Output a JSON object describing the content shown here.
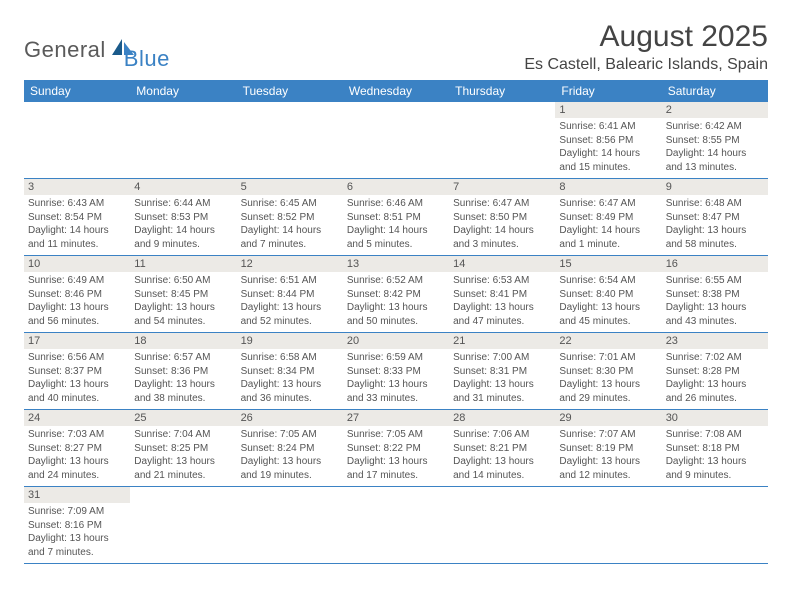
{
  "logo": {
    "general": "General",
    "blue": "Blue"
  },
  "title": "August 2025",
  "location": "Es Castell, Balearic Islands, Spain",
  "colors": {
    "header_bg": "#3b82c4",
    "header_text": "#ffffff",
    "daynum_bg": "#eceae6",
    "text": "#555555",
    "row_border": "#3b82c4"
  },
  "day_headers": [
    "Sunday",
    "Monday",
    "Tuesday",
    "Wednesday",
    "Thursday",
    "Friday",
    "Saturday"
  ],
  "weeks": [
    [
      {
        "n": "",
        "sr": "",
        "ss": "",
        "dl": ""
      },
      {
        "n": "",
        "sr": "",
        "ss": "",
        "dl": ""
      },
      {
        "n": "",
        "sr": "",
        "ss": "",
        "dl": ""
      },
      {
        "n": "",
        "sr": "",
        "ss": "",
        "dl": ""
      },
      {
        "n": "",
        "sr": "",
        "ss": "",
        "dl": ""
      },
      {
        "n": "1",
        "sr": "Sunrise: 6:41 AM",
        "ss": "Sunset: 8:56 PM",
        "dl": "Daylight: 14 hours and 15 minutes."
      },
      {
        "n": "2",
        "sr": "Sunrise: 6:42 AM",
        "ss": "Sunset: 8:55 PM",
        "dl": "Daylight: 14 hours and 13 minutes."
      }
    ],
    [
      {
        "n": "3",
        "sr": "Sunrise: 6:43 AM",
        "ss": "Sunset: 8:54 PM",
        "dl": "Daylight: 14 hours and 11 minutes."
      },
      {
        "n": "4",
        "sr": "Sunrise: 6:44 AM",
        "ss": "Sunset: 8:53 PM",
        "dl": "Daylight: 14 hours and 9 minutes."
      },
      {
        "n": "5",
        "sr": "Sunrise: 6:45 AM",
        "ss": "Sunset: 8:52 PM",
        "dl": "Daylight: 14 hours and 7 minutes."
      },
      {
        "n": "6",
        "sr": "Sunrise: 6:46 AM",
        "ss": "Sunset: 8:51 PM",
        "dl": "Daylight: 14 hours and 5 minutes."
      },
      {
        "n": "7",
        "sr": "Sunrise: 6:47 AM",
        "ss": "Sunset: 8:50 PM",
        "dl": "Daylight: 14 hours and 3 minutes."
      },
      {
        "n": "8",
        "sr": "Sunrise: 6:47 AM",
        "ss": "Sunset: 8:49 PM",
        "dl": "Daylight: 14 hours and 1 minute."
      },
      {
        "n": "9",
        "sr": "Sunrise: 6:48 AM",
        "ss": "Sunset: 8:47 PM",
        "dl": "Daylight: 13 hours and 58 minutes."
      }
    ],
    [
      {
        "n": "10",
        "sr": "Sunrise: 6:49 AM",
        "ss": "Sunset: 8:46 PM",
        "dl": "Daylight: 13 hours and 56 minutes."
      },
      {
        "n": "11",
        "sr": "Sunrise: 6:50 AM",
        "ss": "Sunset: 8:45 PM",
        "dl": "Daylight: 13 hours and 54 minutes."
      },
      {
        "n": "12",
        "sr": "Sunrise: 6:51 AM",
        "ss": "Sunset: 8:44 PM",
        "dl": "Daylight: 13 hours and 52 minutes."
      },
      {
        "n": "13",
        "sr": "Sunrise: 6:52 AM",
        "ss": "Sunset: 8:42 PM",
        "dl": "Daylight: 13 hours and 50 minutes."
      },
      {
        "n": "14",
        "sr": "Sunrise: 6:53 AM",
        "ss": "Sunset: 8:41 PM",
        "dl": "Daylight: 13 hours and 47 minutes."
      },
      {
        "n": "15",
        "sr": "Sunrise: 6:54 AM",
        "ss": "Sunset: 8:40 PM",
        "dl": "Daylight: 13 hours and 45 minutes."
      },
      {
        "n": "16",
        "sr": "Sunrise: 6:55 AM",
        "ss": "Sunset: 8:38 PM",
        "dl": "Daylight: 13 hours and 43 minutes."
      }
    ],
    [
      {
        "n": "17",
        "sr": "Sunrise: 6:56 AM",
        "ss": "Sunset: 8:37 PM",
        "dl": "Daylight: 13 hours and 40 minutes."
      },
      {
        "n": "18",
        "sr": "Sunrise: 6:57 AM",
        "ss": "Sunset: 8:36 PM",
        "dl": "Daylight: 13 hours and 38 minutes."
      },
      {
        "n": "19",
        "sr": "Sunrise: 6:58 AM",
        "ss": "Sunset: 8:34 PM",
        "dl": "Daylight: 13 hours and 36 minutes."
      },
      {
        "n": "20",
        "sr": "Sunrise: 6:59 AM",
        "ss": "Sunset: 8:33 PM",
        "dl": "Daylight: 13 hours and 33 minutes."
      },
      {
        "n": "21",
        "sr": "Sunrise: 7:00 AM",
        "ss": "Sunset: 8:31 PM",
        "dl": "Daylight: 13 hours and 31 minutes."
      },
      {
        "n": "22",
        "sr": "Sunrise: 7:01 AM",
        "ss": "Sunset: 8:30 PM",
        "dl": "Daylight: 13 hours and 29 minutes."
      },
      {
        "n": "23",
        "sr": "Sunrise: 7:02 AM",
        "ss": "Sunset: 8:28 PM",
        "dl": "Daylight: 13 hours and 26 minutes."
      }
    ],
    [
      {
        "n": "24",
        "sr": "Sunrise: 7:03 AM",
        "ss": "Sunset: 8:27 PM",
        "dl": "Daylight: 13 hours and 24 minutes."
      },
      {
        "n": "25",
        "sr": "Sunrise: 7:04 AM",
        "ss": "Sunset: 8:25 PM",
        "dl": "Daylight: 13 hours and 21 minutes."
      },
      {
        "n": "26",
        "sr": "Sunrise: 7:05 AM",
        "ss": "Sunset: 8:24 PM",
        "dl": "Daylight: 13 hours and 19 minutes."
      },
      {
        "n": "27",
        "sr": "Sunrise: 7:05 AM",
        "ss": "Sunset: 8:22 PM",
        "dl": "Daylight: 13 hours and 17 minutes."
      },
      {
        "n": "28",
        "sr": "Sunrise: 7:06 AM",
        "ss": "Sunset: 8:21 PM",
        "dl": "Daylight: 13 hours and 14 minutes."
      },
      {
        "n": "29",
        "sr": "Sunrise: 7:07 AM",
        "ss": "Sunset: 8:19 PM",
        "dl": "Daylight: 13 hours and 12 minutes."
      },
      {
        "n": "30",
        "sr": "Sunrise: 7:08 AM",
        "ss": "Sunset: 8:18 PM",
        "dl": "Daylight: 13 hours and 9 minutes."
      }
    ],
    [
      {
        "n": "31",
        "sr": "Sunrise: 7:09 AM",
        "ss": "Sunset: 8:16 PM",
        "dl": "Daylight: 13 hours and 7 minutes."
      },
      {
        "n": "",
        "sr": "",
        "ss": "",
        "dl": ""
      },
      {
        "n": "",
        "sr": "",
        "ss": "",
        "dl": ""
      },
      {
        "n": "",
        "sr": "",
        "ss": "",
        "dl": ""
      },
      {
        "n": "",
        "sr": "",
        "ss": "",
        "dl": ""
      },
      {
        "n": "",
        "sr": "",
        "ss": "",
        "dl": ""
      },
      {
        "n": "",
        "sr": "",
        "ss": "",
        "dl": ""
      }
    ]
  ]
}
